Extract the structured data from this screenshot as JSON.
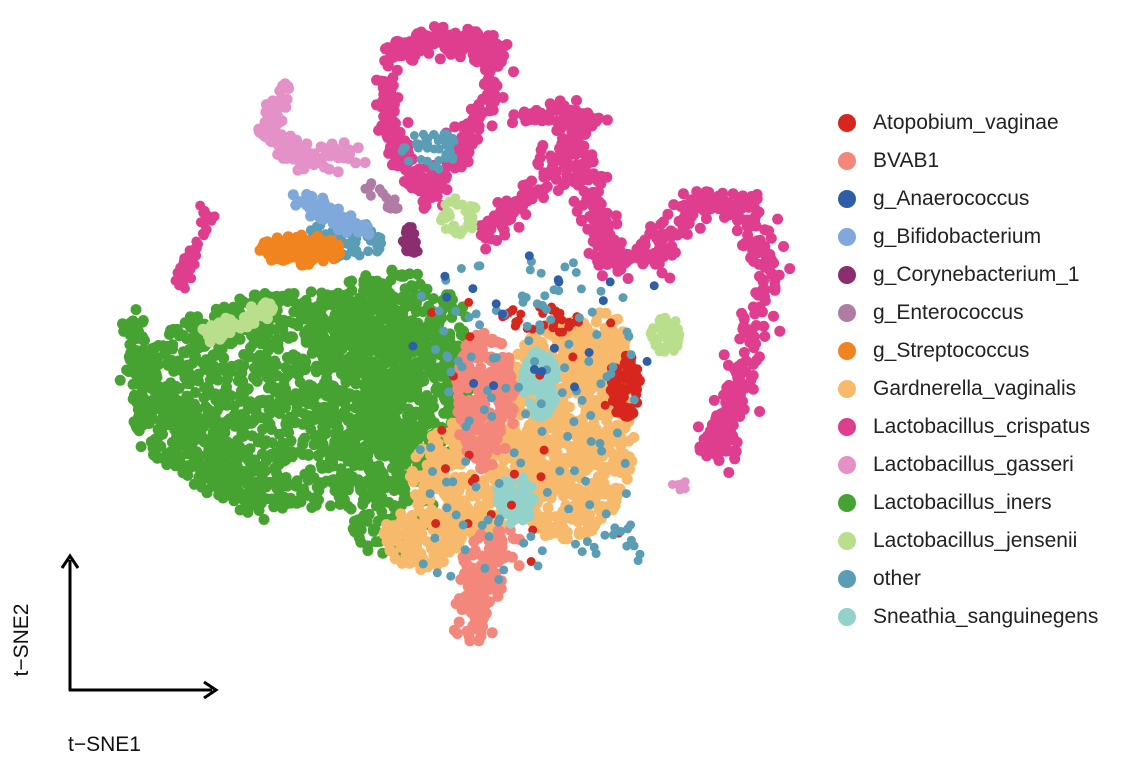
{
  "chart_data": {
    "type": "scatter",
    "title": "",
    "xlabel": "t−SNE1",
    "ylabel": "t−SNE2",
    "legend_position": "right",
    "grid": false,
    "axes_style": "arrows",
    "series": [
      {
        "name": "Atopobium_vaginae",
        "color": "#d7261e"
      },
      {
        "name": "BVAB1",
        "color": "#f4877b"
      },
      {
        "name": "g_Anaerococcus",
        "color": "#2e5ea8"
      },
      {
        "name": "g_Bifidobacterium",
        "color": "#7fa8db"
      },
      {
        "name": "g_Corynebacterium_1",
        "color": "#8b2d6e"
      },
      {
        "name": "g_Enterococcus",
        "color": "#b07ca6"
      },
      {
        "name": "g_Streptococcus",
        "color": "#f2841f"
      },
      {
        "name": "Gardnerella_vaginalis",
        "color": "#f7b96b"
      },
      {
        "name": "Lactobacillus_crispatus",
        "color": "#df3e8f"
      },
      {
        "name": "Lactobacillus_gasseri",
        "color": "#e391c7"
      },
      {
        "name": "Lactobacillus_iners",
        "color": "#47a331"
      },
      {
        "name": "Lactobacillus_jensenii",
        "color": "#b9de8c"
      },
      {
        "name": "other",
        "color": "#5b9db5"
      },
      {
        "name": "Sneathia_sanguinegens",
        "color": "#93d2ca"
      }
    ]
  }
}
